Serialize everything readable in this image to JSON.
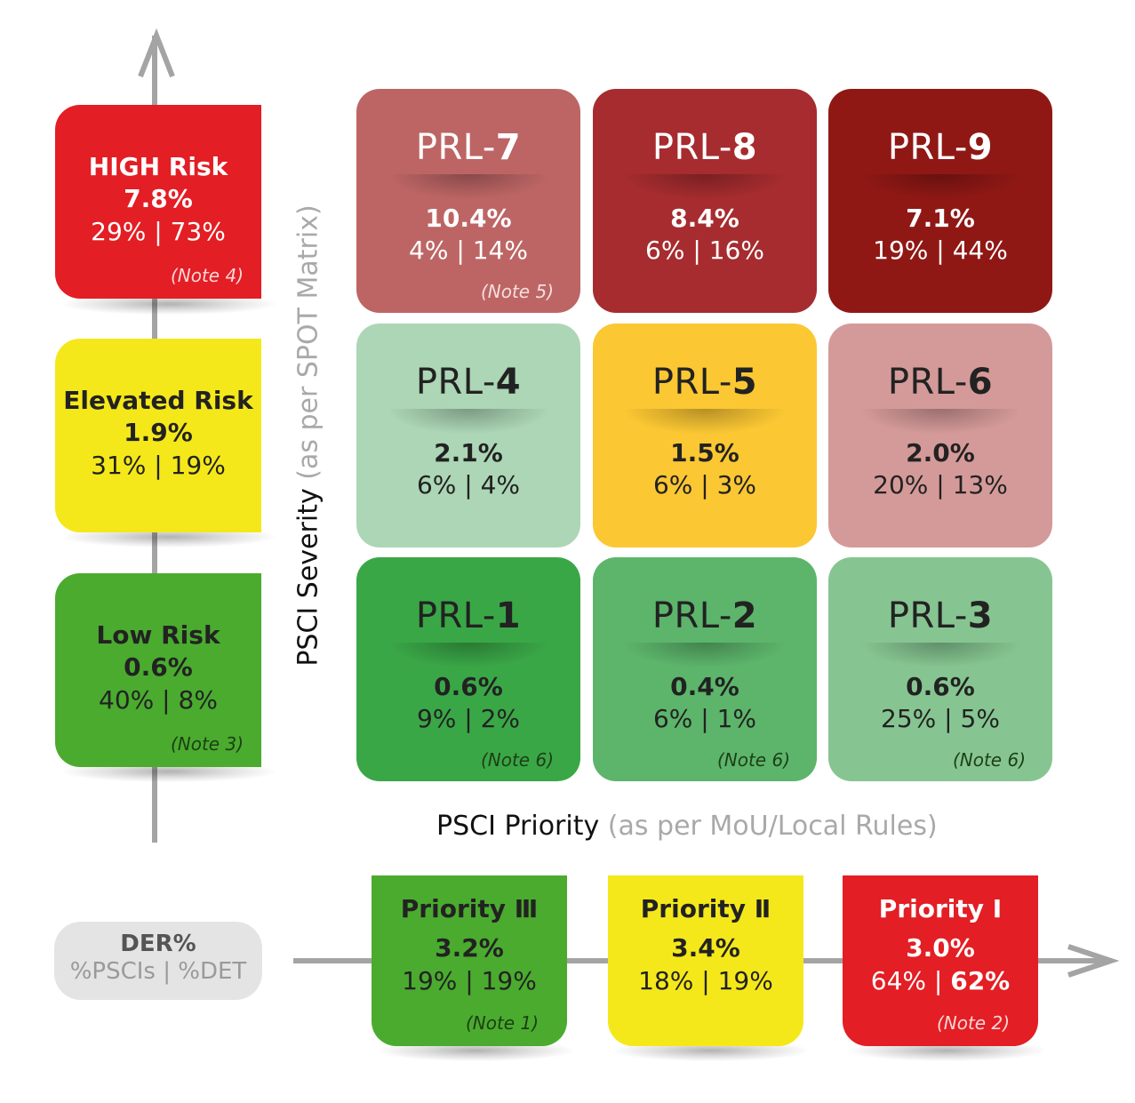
{
  "risk_levels": [
    {
      "label": "HIGH Risk",
      "der": "7.8%",
      "split": "29% | 73%",
      "note": "(Note 4)",
      "color": "#e31e24"
    },
    {
      "label": "Elevated Risk",
      "der": "1.9%",
      "split": "31% | 19%",
      "note": "",
      "color": "#f5e81a"
    },
    {
      "label": "Low Risk",
      "der": "0.6%",
      "split": "40% | 8%",
      "note": "(Note 3)",
      "color": "#4aab2f"
    }
  ],
  "cells": [
    {
      "prefix": "PRL-",
      "num": "7",
      "der": "10.4%",
      "split": "4% | 14%",
      "note": "(Note 5)",
      "color": "#bd6565"
    },
    {
      "prefix": "PRL-",
      "num": "8",
      "der": "8.4%",
      "split": "6% | 16%",
      "note": "",
      "color": "#a62c2f"
    },
    {
      "prefix": "PRL-",
      "num": "9",
      "der": "7.1%",
      "split": "19% | 44%",
      "note": "",
      "color": "#8f1815"
    },
    {
      "prefix": "PRL-",
      "num": "4",
      "der": "2.1%",
      "split": "6% | 4%",
      "note": "",
      "color": "#acd6b5"
    },
    {
      "prefix": "PRL-",
      "num": "5",
      "der": "1.5%",
      "split": "6% | 3%",
      "note": "",
      "color": "#fbc733"
    },
    {
      "prefix": "PRL-",
      "num": "6",
      "der": "2.0%",
      "split": "20% | 13%",
      "note": "",
      "color": "#d49a99"
    },
    {
      "prefix": "PRL-",
      "num": "1",
      "der": "0.6%",
      "split": "9% | 2%",
      "note": "(Note 6)",
      "color": "#3aa747"
    },
    {
      "prefix": "PRL-",
      "num": "2",
      "der": "0.4%",
      "split": "6% | 1%",
      "note": "(Note 6)",
      "color": "#5cb56b"
    },
    {
      "prefix": "PRL-",
      "num": "3",
      "der": "0.6%",
      "split": "25% | 5%",
      "note": "(Note 6)",
      "color": "#86c591"
    }
  ],
  "y_axis": {
    "title": "PSCI Severity",
    "subtitle": "(as per SPOT Matrix)"
  },
  "x_axis": {
    "title": "PSCI Priority",
    "subtitle": "(as per MoU/Local Rules)"
  },
  "legend": {
    "title": "DER%",
    "subtitle": "%PSCIs | %DET"
  },
  "priorities": [
    {
      "label": "Priority",
      "numeral": "Ⅲ",
      "der": "3.2%",
      "split_a": "19% | 19%",
      "split_b": "",
      "note": "(Note 1)",
      "color": "#4aab2f"
    },
    {
      "label": "Priority",
      "numeral": "Ⅱ",
      "der": "3.4%",
      "split_a": "18% | 19%",
      "split_b": "",
      "note": "",
      "color": "#f5e81a"
    },
    {
      "label": "Priority",
      "numeral": "Ⅰ",
      "der": "3.0%",
      "split_a": "64% | ",
      "split_b": "62%",
      "note": "(Note 2)",
      "color": "#e31e24"
    }
  ]
}
